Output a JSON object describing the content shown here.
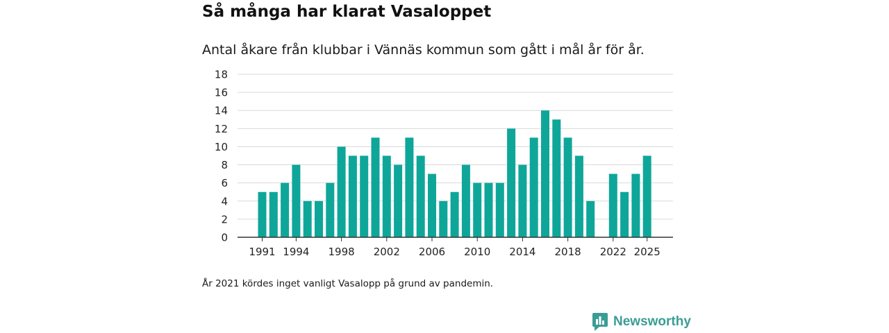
{
  "header": {
    "title": "Så många har klarat Vasaloppet",
    "subtitle": "Antal åkare från klubbar i Vännäs kommun som gått i mål år för år."
  },
  "footnote": "År 2021 kördes inget vanligt Vasalopp på grund av pandemin.",
  "brand": {
    "name": "Newsworthy",
    "icon": "newsworthy-logo-icon",
    "color": "#3a9d94"
  },
  "colors": {
    "bar": "#0fa69a",
    "grid": "#d9d9d9",
    "axis": "#333333"
  },
  "chart_data": {
    "type": "bar",
    "title": "Så många har klarat Vasaloppet",
    "xlabel": "",
    "ylabel": "",
    "ylim": [
      0,
      18
    ],
    "yticks": [
      0,
      2,
      4,
      6,
      8,
      10,
      12,
      14,
      16,
      18
    ],
    "xtick_labels": [
      "1991",
      "1994",
      "1998",
      "2002",
      "2006",
      "2010",
      "2014",
      "2018",
      "2022",
      "2025"
    ],
    "grid": true,
    "legend": "none",
    "categories": [
      1991,
      1992,
      1993,
      1994,
      1995,
      1996,
      1997,
      1998,
      1999,
      2000,
      2001,
      2002,
      2003,
      2004,
      2005,
      2006,
      2007,
      2008,
      2009,
      2010,
      2011,
      2012,
      2013,
      2014,
      2015,
      2016,
      2017,
      2018,
      2019,
      2020,
      2021,
      2022,
      2023,
      2024,
      2025
    ],
    "values": [
      5,
      5,
      6,
      8,
      4,
      4,
      6,
      10,
      9,
      9,
      11,
      9,
      8,
      11,
      9,
      7,
      4,
      5,
      8,
      6,
      6,
      6,
      12,
      8,
      11,
      14,
      13,
      11,
      9,
      4,
      null,
      7,
      5,
      7,
      9
    ]
  }
}
